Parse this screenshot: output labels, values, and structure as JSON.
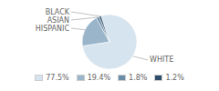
{
  "chart_data": {
    "type": "pie",
    "categories": [
      "WHITE",
      "HISPANIC",
      "ASIAN",
      "BLACK"
    ],
    "values": [
      77.5,
      19.4,
      1.8,
      1.2
    ],
    "colors": [
      "#d6e4ef",
      "#9ab5c9",
      "#6b8ea8",
      "#2e4d6a"
    ],
    "value_labels": [
      "77.5%",
      "19.4%",
      "1.8%",
      "1.2%"
    ],
    "legend": "bottom"
  }
}
